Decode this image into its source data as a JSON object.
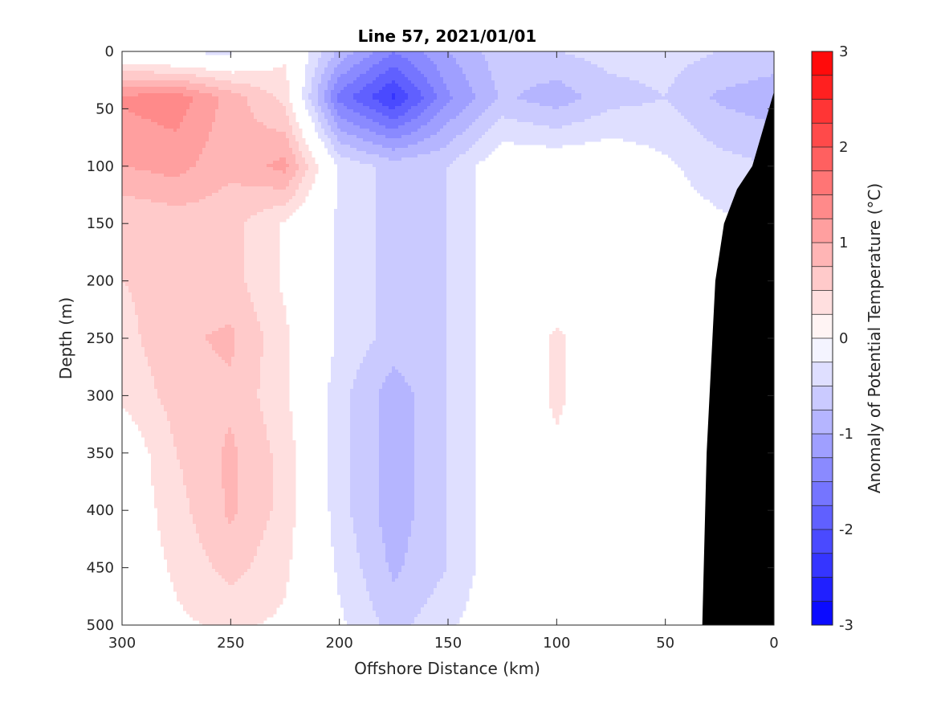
{
  "chart_data": {
    "type": "heatmap",
    "title": "Line 57, 2021/01/01",
    "xlabel": "Offshore Distance (km)",
    "ylabel": "Depth (m)",
    "colorbar_label": "Anomaly of Potential Temperature (°C)",
    "x_reversed": true,
    "y_reversed": true,
    "xlim": [
      300,
      0
    ],
    "ylim": [
      0,
      500
    ],
    "clim": [
      -3,
      3
    ],
    "contour_interval": 0.25,
    "x_ticks": [
      300,
      250,
      200,
      150,
      100,
      50,
      0
    ],
    "x_tick_labels": [
      "300",
      "250",
      "200",
      "150",
      "100",
      "50",
      "0"
    ],
    "y_ticks": [
      0,
      50,
      100,
      150,
      200,
      250,
      300,
      350,
      400,
      450,
      500
    ],
    "y_tick_labels": [
      "0",
      "50",
      "100",
      "150",
      "200",
      "250",
      "300",
      "350",
      "400",
      "450",
      "500"
    ],
    "colorbar_ticks": [
      3,
      2,
      1,
      0,
      -1,
      -2,
      -3
    ],
    "colorbar_tick_labels": [
      "3",
      "2",
      "1",
      "0",
      "-1",
      "-2",
      "-3"
    ],
    "colormap": {
      "negative": "#0000ff",
      "zero": "#ffffff",
      "positive": "#ff0000"
    },
    "bathymetry_color": "#000000",
    "anomaly_field": {
      "x": [
        300,
        275,
        250,
        225,
        200,
        175,
        150,
        125,
        100,
        75,
        50,
        25,
        0
      ],
      "y": [
        0,
        40,
        100,
        150,
        200,
        250,
        300,
        350,
        400,
        450,
        500
      ],
      "values": [
        [
          -0.1,
          -0.3,
          -0.3,
          0.2,
          -0.8,
          -1.5,
          -1.0,
          -0.6,
          -0.5,
          -0.4,
          -0.4,
          -0.5,
          -0.6
        ],
        [
          1.3,
          1.4,
          0.9,
          0.4,
          -1.6,
          -2.3,
          -1.3,
          -0.7,
          -0.9,
          -0.6,
          -0.5,
          -0.8,
          -0.9
        ],
        [
          1.0,
          1.1,
          0.8,
          1.1,
          -0.3,
          -0.6,
          -0.5,
          0.0,
          0.0,
          0.0,
          -0.2,
          -0.4,
          -0.5
        ],
        [
          0.5,
          0.6,
          0.6,
          0.2,
          -0.3,
          -0.6,
          -0.5,
          0.0,
          0.0,
          0.0,
          -0.1,
          -0.2,
          -0.3
        ],
        [
          0.5,
          0.6,
          0.6,
          0.2,
          -0.3,
          -0.6,
          -0.5,
          0.0,
          0.0,
          0.0,
          0.0,
          0.0,
          0.0
        ],
        [
          0.4,
          0.7,
          0.8,
          0.3,
          -0.3,
          -0.6,
          -0.5,
          0.0,
          0.3,
          0.0,
          0.0,
          0.0,
          0.0
        ],
        [
          0.3,
          0.6,
          0.7,
          0.3,
          -0.4,
          -0.9,
          -0.5,
          0.0,
          0.3,
          0.0,
          0.0,
          0.0,
          0.0
        ],
        [
          0.0,
          0.5,
          0.8,
          0.4,
          -0.4,
          -0.9,
          -0.5,
          0.0,
          0.2,
          0.1,
          0.0,
          0.0,
          0.0
        ],
        [
          0.0,
          0.4,
          0.8,
          0.4,
          -0.4,
          -0.9,
          -0.5,
          0.0,
          0.2,
          0.2,
          0.0,
          0.0,
          0.0
        ],
        [
          0.0,
          0.3,
          0.6,
          0.3,
          -0.3,
          -0.8,
          -0.5,
          0.0,
          0.1,
          0.1,
          0.0,
          0.0,
          0.0
        ],
        [
          0.0,
          0.2,
          0.3,
          0.2,
          -0.2,
          -0.6,
          -0.3,
          0.0,
          0.0,
          0.0,
          0.0,
          0.0,
          0.0
        ]
      ]
    },
    "bathymetry": {
      "x": [
        0,
        0,
        10,
        17,
        23,
        27,
        31,
        33
      ],
      "depth": [
        500,
        35,
        100,
        120,
        150,
        200,
        350,
        500
      ]
    }
  }
}
